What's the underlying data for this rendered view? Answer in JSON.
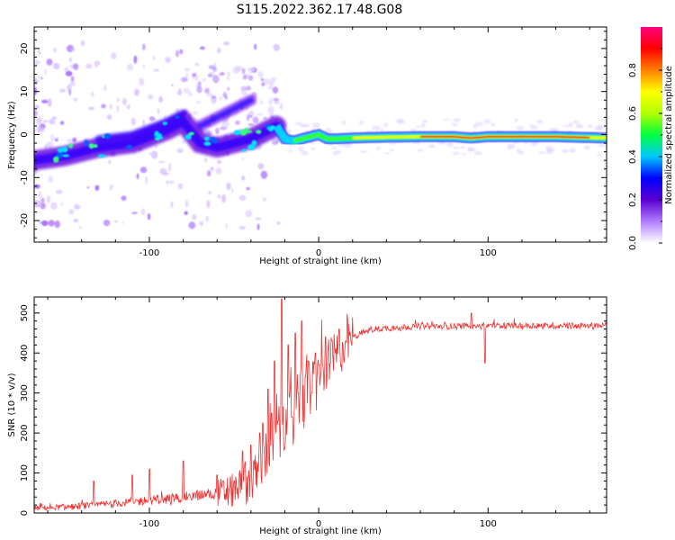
{
  "figure": {
    "title": "S115.2022.362.17.48.G08"
  },
  "chart_data": [
    {
      "type": "heatmap",
      "xlabel": "Height of straight line (km)",
      "ylabel": "Frequency (Hz)",
      "xlim": [
        -168,
        170
      ],
      "ylim": [
        -25,
        25
      ],
      "x_ticks": [
        -100,
        0,
        100
      ],
      "x_tick_labels": [
        "-100",
        "0",
        "100"
      ],
      "y_ticks": [
        -20,
        -10,
        0,
        10,
        20
      ],
      "y_tick_labels": [
        "-20",
        "-10",
        "0",
        "10",
        "20"
      ],
      "ridge": {
        "x": [
          -168,
          -150,
          -130,
          -110,
          -90,
          -80,
          -70,
          -60,
          -50,
          -40,
          -30,
          -25,
          -20,
          -15,
          -10,
          -5,
          0,
          5,
          10,
          20,
          40,
          60,
          80,
          90,
          100,
          120,
          140,
          170
        ],
        "y": [
          -6,
          -5,
          -3,
          -2,
          1,
          3,
          -2,
          -3,
          -2,
          -1,
          1,
          2,
          -1,
          -1.5,
          -1,
          -0.5,
          0,
          -1,
          -1,
          -0.8,
          -0.6,
          -0.5,
          -0.5,
          -0.8,
          -0.5,
          -0.5,
          -0.5,
          -0.8
        ]
      },
      "upper_ridge": {
        "x": [
          -70,
          -60,
          -50,
          -45,
          -40
        ],
        "y": [
          2,
          4,
          6,
          7,
          8
        ]
      },
      "colorbar": {
        "label": "Normalized spectral amplitude",
        "range": [
          0,
          1
        ],
        "ticks": [
          0.0,
          0.2,
          0.4,
          0.6,
          0.8
        ],
        "tick_labels": [
          "0.0",
          "0.2",
          "0.4",
          "0.6",
          "0.8"
        ],
        "colors": [
          "#ffffff",
          "#b07cff",
          "#5a00d0",
          "#0000ff",
          "#00c8ff",
          "#00ff40",
          "#b0ff00",
          "#ffff00",
          "#ff8000",
          "#ff0000",
          "#ff0080"
        ]
      }
    },
    {
      "type": "line",
      "xlabel": "Height of straight line (km)",
      "ylabel": "SNR (10 * v/v)",
      "xlim": [
        -168,
        170
      ],
      "ylim": [
        0,
        540
      ],
      "x_ticks": [
        -100,
        0,
        100
      ],
      "x_tick_labels": [
        "-100",
        "0",
        "100"
      ],
      "y_ticks": [
        0,
        100,
        200,
        300,
        400,
        500
      ],
      "y_tick_labels": [
        "0",
        "100",
        "200",
        "300",
        "400",
        "500"
      ],
      "color": "#ee3333",
      "envelope": {
        "x": [
          -168,
          -150,
          -130,
          -110,
          -90,
          -70,
          -60,
          -50,
          -40,
          -35,
          -30,
          -25,
          -20,
          -15,
          -10,
          -5,
          0,
          5,
          10,
          15,
          20,
          30,
          40,
          50,
          60,
          80,
          90,
          100,
          120,
          140,
          170
        ],
        "y": [
          12,
          15,
          20,
          28,
          35,
          45,
          50,
          55,
          80,
          110,
          150,
          190,
          220,
          250,
          280,
          310,
          330,
          360,
          390,
          420,
          440,
          458,
          462,
          465,
          467,
          467,
          468,
          468,
          468,
          468,
          468
        ]
      },
      "spikes": {
        "x": [
          -133,
          -110,
          -100,
          -80,
          -60,
          -50,
          -45,
          -40,
          -35,
          -33,
          -30,
          -28,
          -26,
          -24,
          -22,
          -20,
          -18,
          -16,
          -14,
          -12,
          -10,
          -8,
          -6,
          -4,
          -2,
          0,
          4,
          8,
          12,
          16,
          90,
          98
        ],
        "y": [
          80,
          95,
          110,
          130,
          95,
          80,
          155,
          170,
          200,
          225,
          310,
          250,
          380,
          230,
          535,
          160,
          420,
          240,
          450,
          300,
          480,
          340,
          380,
          300,
          400,
          370,
          440,
          430,
          460,
          430,
          500,
          375
        ]
      }
    }
  ]
}
